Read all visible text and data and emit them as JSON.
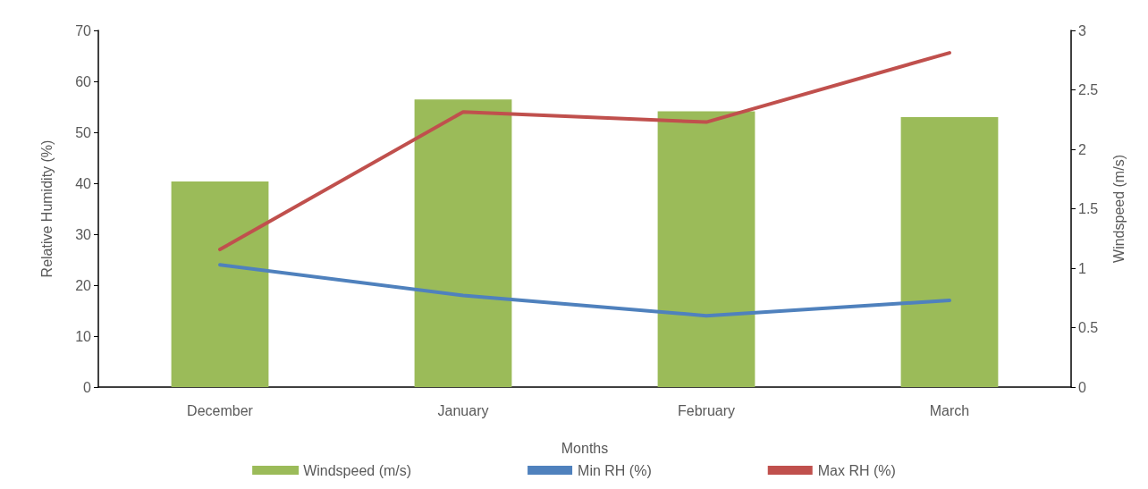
{
  "chart_data": {
    "type": "bar",
    "categories": [
      "December",
      "January",
      "February",
      "March"
    ],
    "xlabel": "Months",
    "ylabel": "Relative Humidity (%)",
    "y2label": "Windspeed (m/s)",
    "series": [
      {
        "name": "Windspeed (m/s)",
        "axis": "y2",
        "color": "#9bbb59",
        "values": [
          1.73,
          2.42,
          2.32,
          2.27
        ]
      },
      {
        "name": "Min RH (%)",
        "type": "line",
        "color": "#4f81bd",
        "values": [
          24,
          18,
          14,
          17
        ]
      },
      {
        "name": "Max RH (%)",
        "type": "line",
        "color": "#c0504d",
        "values": [
          27,
          54,
          52,
          65.6
        ]
      }
    ],
    "ylim": [
      0,
      70
    ],
    "yticks": [
      0,
      10,
      20,
      30,
      40,
      50,
      60,
      70
    ],
    "y2lim": [
      0,
      3
    ],
    "y2ticks": [
      0,
      0.5,
      1,
      1.5,
      2,
      2.5,
      3
    ],
    "legend": "bottom",
    "grid": false,
    "marker": "none",
    "line_style": "solid"
  }
}
